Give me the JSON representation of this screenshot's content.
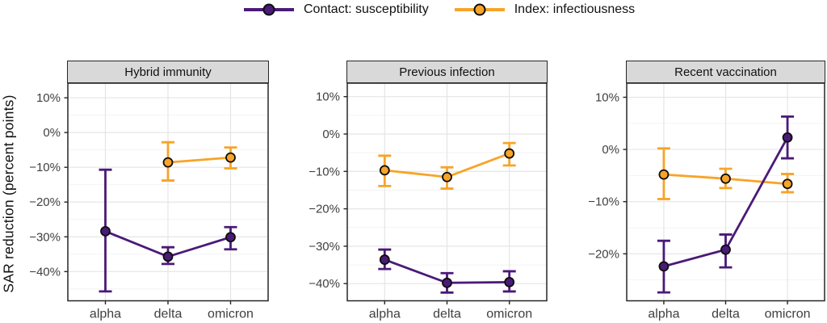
{
  "figure": {
    "y_axis_title": "SAR reduction (percent points)",
    "legend": [
      {
        "id": "contact",
        "label": "Contact: susceptibility",
        "color": "#4A1A78"
      },
      {
        "id": "index",
        "label": "Index: infectiousness",
        "color": "#F7A428"
      }
    ],
    "colors": {
      "contact_purple": "#4A1A78",
      "index_orange": "#F7A428",
      "point_outline": "#0d0d0d",
      "strip_background": "#d9d9d9",
      "panel_border": "#262626",
      "grid_major": "#e5e5e5",
      "grid_minor": "#f2f2f2",
      "tick_text": "#404040"
    }
  },
  "chart_data": {
    "type": "line",
    "categories": [
      "alpha",
      "delta",
      "omicron"
    ],
    "y_tick_suffix": "%",
    "grid": "on",
    "legend_position": "top",
    "panels": [
      {
        "title": "Hybrid immunity",
        "ylim": [
          -48.4,
          14.2
        ],
        "yticks": [
          10,
          0,
          -10,
          -20,
          -30,
          -40
        ],
        "yticks_minor": [
          5,
          -5,
          -15,
          -25,
          -35,
          -45
        ],
        "series": [
          {
            "name": "Contact: susceptibility",
            "color": "#4A1A78",
            "values": [
              -28.4,
              -35.7,
              -30.1
            ],
            "ci_low": [
              -45.7,
              -37.8,
              -33.6
            ],
            "ci_high": [
              -10.7,
              -33.0,
              -27.2
            ]
          },
          {
            "name": "Index: infectiousness",
            "color": "#F7A428",
            "values": [
              null,
              -8.6,
              -7.2
            ],
            "ci_low": [
              null,
              -13.8,
              -10.3
            ],
            "ci_high": [
              null,
              -2.8,
              -4.3
            ]
          }
        ]
      },
      {
        "title": "Previous infection",
        "ylim": [
          -44.6,
          13.6
        ],
        "yticks": [
          10,
          0,
          -10,
          -20,
          -30,
          -40
        ],
        "yticks_minor": [
          5,
          -5,
          -15,
          -25,
          -35
        ],
        "series": [
          {
            "name": "Contact: susceptibility",
            "color": "#4A1A78",
            "values": [
              -33.6,
              -39.8,
              -39.6
            ],
            "ci_low": [
              -36.1,
              -42.4,
              -42.1
            ],
            "ci_high": [
              -30.9,
              -37.2,
              -36.7
            ]
          },
          {
            "name": "Index: infectiousness",
            "color": "#F7A428",
            "values": [
              -9.7,
              -11.5,
              -5.2
            ],
            "ci_low": [
              -13.9,
              -14.6,
              -8.4
            ],
            "ci_high": [
              -5.8,
              -8.9,
              -2.4
            ]
          }
        ]
      },
      {
        "title": "Recent vaccination",
        "ylim": [
          -29.0,
          12.7
        ],
        "yticks": [
          10,
          0,
          -10,
          -20
        ],
        "yticks_minor": [
          5,
          -5,
          -15,
          -25
        ],
        "series": [
          {
            "name": "Contact: susceptibility",
            "color": "#4A1A78",
            "values": [
              -22.4,
              -19.2,
              2.3
            ],
            "ci_low": [
              -27.4,
              -22.6,
              -1.7
            ],
            "ci_high": [
              -17.5,
              -16.3,
              6.3
            ]
          },
          {
            "name": "Index: infectiousness",
            "color": "#F7A428",
            "values": [
              -4.8,
              -5.6,
              -6.6
            ],
            "ci_low": [
              -9.5,
              -7.4,
              -8.2
            ],
            "ci_high": [
              0.2,
              -3.7,
              -4.7
            ]
          }
        ]
      }
    ]
  }
}
